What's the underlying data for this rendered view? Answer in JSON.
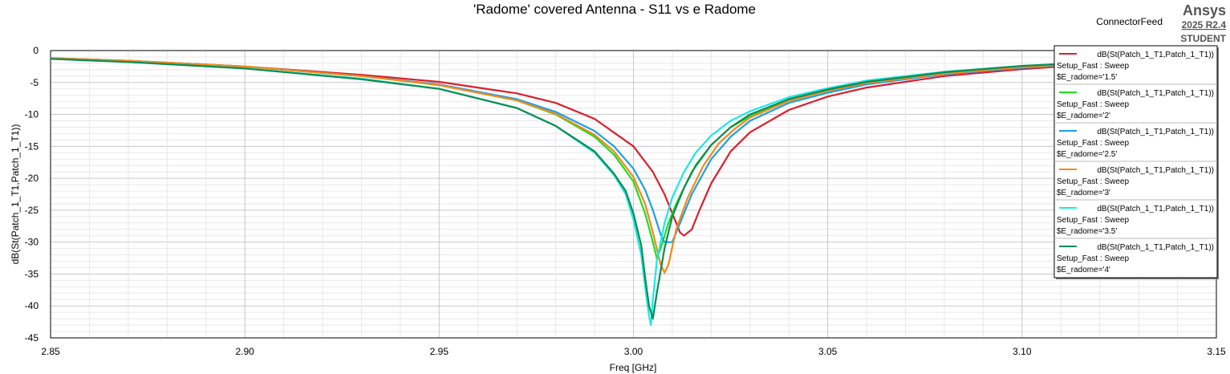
{
  "header": {
    "context_label": "ConnectorFeed",
    "brand": "Ansys",
    "version": "2025 R2.4",
    "edition": "STUDENT"
  },
  "chart_data": {
    "type": "line",
    "title": "'Radome' covered Antenna - S11 vs e Radome",
    "xlabel": "Freq [GHz]",
    "ylabel": "dB(St(Patch_1_T1,Patch_1_T1))",
    "xlim": [
      2.85,
      3.15
    ],
    "ylim": [
      -45,
      0
    ],
    "x_ticks": [
      "2.85",
      "2.90",
      "2.95",
      "3.00",
      "3.05",
      "3.10",
      "3.15"
    ],
    "y_ticks": [
      "0",
      "-5",
      "-10",
      "-15",
      "-20",
      "-25",
      "-30",
      "-35",
      "-40",
      "-45"
    ],
    "grid": true,
    "legend_position": "top-right",
    "series": [
      {
        "name": "dB(St(Patch_1_T1,Patch_1_T1))",
        "setup": "Setup_Fast : Sweep",
        "param": "$E_radome='1.5'",
        "color": "#d9202c",
        "x": [
          2.85,
          2.87,
          2.9,
          2.93,
          2.95,
          2.97,
          2.98,
          2.99,
          3.0,
          3.005,
          3.008,
          3.01,
          3.012,
          3.013,
          3.015,
          3.017,
          3.02,
          3.025,
          3.03,
          3.04,
          3.05,
          3.06,
          3.08,
          3.1,
          3.12
        ],
        "y": [
          -1.2,
          -1.6,
          -2.5,
          -3.8,
          -4.9,
          -6.7,
          -8.2,
          -10.7,
          -15.0,
          -19.0,
          -22.5,
          -25.5,
          -28.5,
          -29.0,
          -28.0,
          -25.0,
          -20.8,
          -15.8,
          -12.8,
          -9.3,
          -7.2,
          -5.8,
          -4.0,
          -2.9,
          -2.1
        ]
      },
      {
        "name": "dB(St(Patch_1_T1,Patch_1_T1))",
        "setup": "Setup_Fast : Sweep",
        "param": "$E_radome='2'",
        "color": "#22dd22",
        "x": [
          2.85,
          2.87,
          2.9,
          2.93,
          2.95,
          2.97,
          2.98,
          2.99,
          2.995,
          3.0,
          3.003,
          3.005,
          3.006,
          3.007,
          3.009,
          3.011,
          3.015,
          3.02,
          3.025,
          3.03,
          3.04,
          3.05,
          3.06,
          3.08,
          3.1,
          3.12
        ],
        "y": [
          -1.2,
          -1.6,
          -2.5,
          -4.0,
          -5.4,
          -7.8,
          -10.0,
          -13.5,
          -16.3,
          -20.5,
          -25.5,
          -30.0,
          -32.5,
          -31.0,
          -27.0,
          -24.0,
          -19.0,
          -14.8,
          -12.0,
          -10.3,
          -7.8,
          -6.3,
          -5.1,
          -3.6,
          -2.6,
          -1.9
        ]
      },
      {
        "name": "dB(St(Patch_1_T1,Patch_1_T1))",
        "setup": "Setup_Fast : Sweep",
        "param": "$E_radome='2.5'",
        "color": "#1e9fe8",
        "x": [
          2.85,
          2.87,
          2.9,
          2.93,
          2.95,
          2.97,
          2.98,
          2.99,
          2.995,
          3.0,
          3.003,
          3.005,
          3.007,
          3.008,
          3.01,
          3.012,
          3.015,
          3.02,
          3.025,
          3.03,
          3.04,
          3.05,
          3.06,
          3.08,
          3.1,
          3.12
        ],
        "y": [
          -1.2,
          -1.6,
          -2.5,
          -4.0,
          -5.3,
          -7.6,
          -9.6,
          -12.6,
          -15.0,
          -18.5,
          -21.8,
          -25.0,
          -28.8,
          -30.0,
          -30.0,
          -27.0,
          -22.5,
          -17.0,
          -13.5,
          -11.0,
          -8.2,
          -6.6,
          -5.3,
          -3.7,
          -2.7,
          -2.0
        ]
      },
      {
        "name": "dB(St(Patch_1_T1,Patch_1_T1))",
        "setup": "Setup_Fast : Sweep",
        "param": "$E_radome='3'",
        "color": "#f08a1c",
        "x": [
          2.85,
          2.87,
          2.9,
          2.93,
          2.95,
          2.97,
          2.98,
          2.99,
          2.995,
          3.0,
          3.003,
          3.005,
          3.007,
          3.008,
          3.009,
          3.011,
          3.014,
          3.018,
          3.022,
          3.026,
          3.03,
          3.04,
          3.05,
          3.06,
          3.08,
          3.1,
          3.12
        ],
        "y": [
          -1.2,
          -1.6,
          -2.5,
          -4.0,
          -5.4,
          -7.8,
          -9.9,
          -13.2,
          -15.8,
          -19.8,
          -24.0,
          -28.5,
          -33.5,
          -34.8,
          -33.5,
          -28.0,
          -23.0,
          -18.0,
          -14.5,
          -12.3,
          -10.5,
          -7.9,
          -6.3,
          -5.1,
          -3.6,
          -2.6,
          -1.9
        ]
      },
      {
        "name": "dB(St(Patch_1_T1,Patch_1_T1))",
        "setup": "Setup_Fast : Sweep",
        "param": "$E_radome='3.5'",
        "color": "#19e8e8",
        "x": [
          2.85,
          2.87,
          2.9,
          2.93,
          2.95,
          2.97,
          2.98,
          2.99,
          2.995,
          2.998,
          3.0,
          3.002,
          3.003,
          3.004,
          3.0045,
          3.005,
          3.006,
          3.008,
          3.01,
          3.013,
          3.016,
          3.02,
          3.025,
          3.03,
          3.04,
          3.05,
          3.06,
          3.08,
          3.1,
          3.12
        ],
        "y": [
          -1.3,
          -1.8,
          -2.8,
          -4.4,
          -6.0,
          -9.0,
          -11.8,
          -16.0,
          -19.5,
          -22.5,
          -26.5,
          -32.0,
          -37.0,
          -41.5,
          -43.0,
          -39.0,
          -33.0,
          -27.0,
          -23.0,
          -19.0,
          -16.0,
          -13.3,
          -11.0,
          -9.5,
          -7.3,
          -5.9,
          -4.7,
          -3.3,
          -2.4,
          -1.8
        ]
      },
      {
        "name": "dB(St(Patch_1_T1,Patch_1_T1))",
        "setup": "Setup_Fast : Sweep",
        "param": "$E_radome='4'",
        "color": "#0c8c52",
        "x": [
          2.85,
          2.87,
          2.9,
          2.93,
          2.95,
          2.97,
          2.98,
          2.99,
          2.995,
          2.998,
          3.0,
          3.002,
          3.003,
          3.004,
          3.005,
          3.006,
          3.008,
          3.01,
          3.013,
          3.016,
          3.02,
          3.025,
          3.03,
          3.04,
          3.05,
          3.06,
          3.08,
          3.1,
          3.12
        ],
        "y": [
          -1.3,
          -1.8,
          -2.8,
          -4.5,
          -6.0,
          -9.0,
          -11.8,
          -15.8,
          -19.3,
          -22.0,
          -25.5,
          -30.5,
          -35.5,
          -40.0,
          -42.0,
          -38.0,
          -31.0,
          -26.0,
          -21.5,
          -18.0,
          -14.8,
          -12.0,
          -10.0,
          -7.6,
          -6.1,
          -4.9,
          -3.4,
          -2.4,
          -1.8
        ]
      }
    ]
  }
}
